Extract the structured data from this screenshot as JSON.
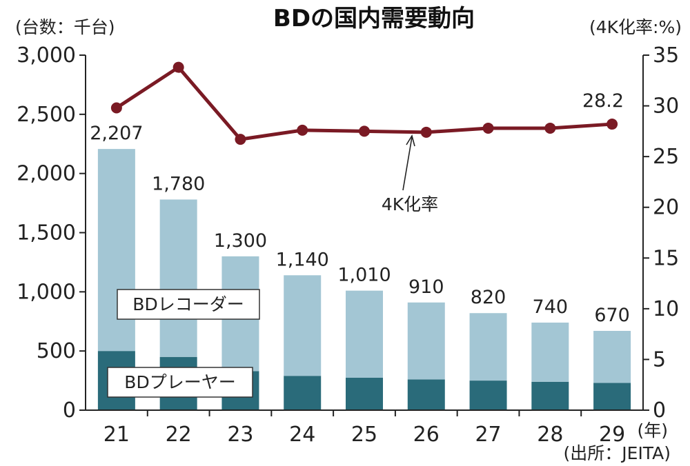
{
  "chart_data": {
    "type": "bar",
    "title": "BDの国内需要動向",
    "ylabel_left": "(台数：千台)",
    "ylabel_right": "(4K化率:%)",
    "xlabel": "(年)",
    "source": "(出所：JEITA)",
    "categories": [
      "21",
      "22",
      "23",
      "24",
      "25",
      "26",
      "27",
      "28",
      "29"
    ],
    "ylim_left": [
      0,
      3000
    ],
    "ylim_right": [
      0,
      35
    ],
    "yticks_left": [
      "0",
      "500",
      "1,000",
      "1,500",
      "2,000",
      "2,500",
      "3,000"
    ],
    "yticks_right": [
      "0",
      "5",
      "10",
      "15",
      "20",
      "25",
      "30",
      "35"
    ],
    "stacked": true,
    "series": [
      {
        "name": "BDプレーヤー",
        "kind": "bar",
        "axis": "left",
        "color": "#2a6b7a",
        "values": [
          500,
          450,
          330,
          290,
          275,
          260,
          250,
          240,
          230
        ]
      },
      {
        "name": "BDレコーダー",
        "kind": "bar",
        "axis": "left",
        "color": "#a3c6d4",
        "values": [
          1707,
          1330,
          970,
          850,
          735,
          650,
          570,
          500,
          440
        ]
      },
      {
        "name": "4K化率",
        "kind": "line",
        "axis": "right",
        "color": "#7a1a24",
        "values": [
          29.8,
          33.8,
          26.7,
          27.6,
          27.5,
          27.4,
          27.8,
          27.8,
          28.2
        ]
      }
    ],
    "total_labels": [
      "2,207",
      "1,780",
      "1,300",
      "1,140",
      "1,010",
      "910",
      "820",
      "740",
      "670"
    ],
    "line_end_label": "28.2",
    "line_annotation": "4K化率"
  }
}
